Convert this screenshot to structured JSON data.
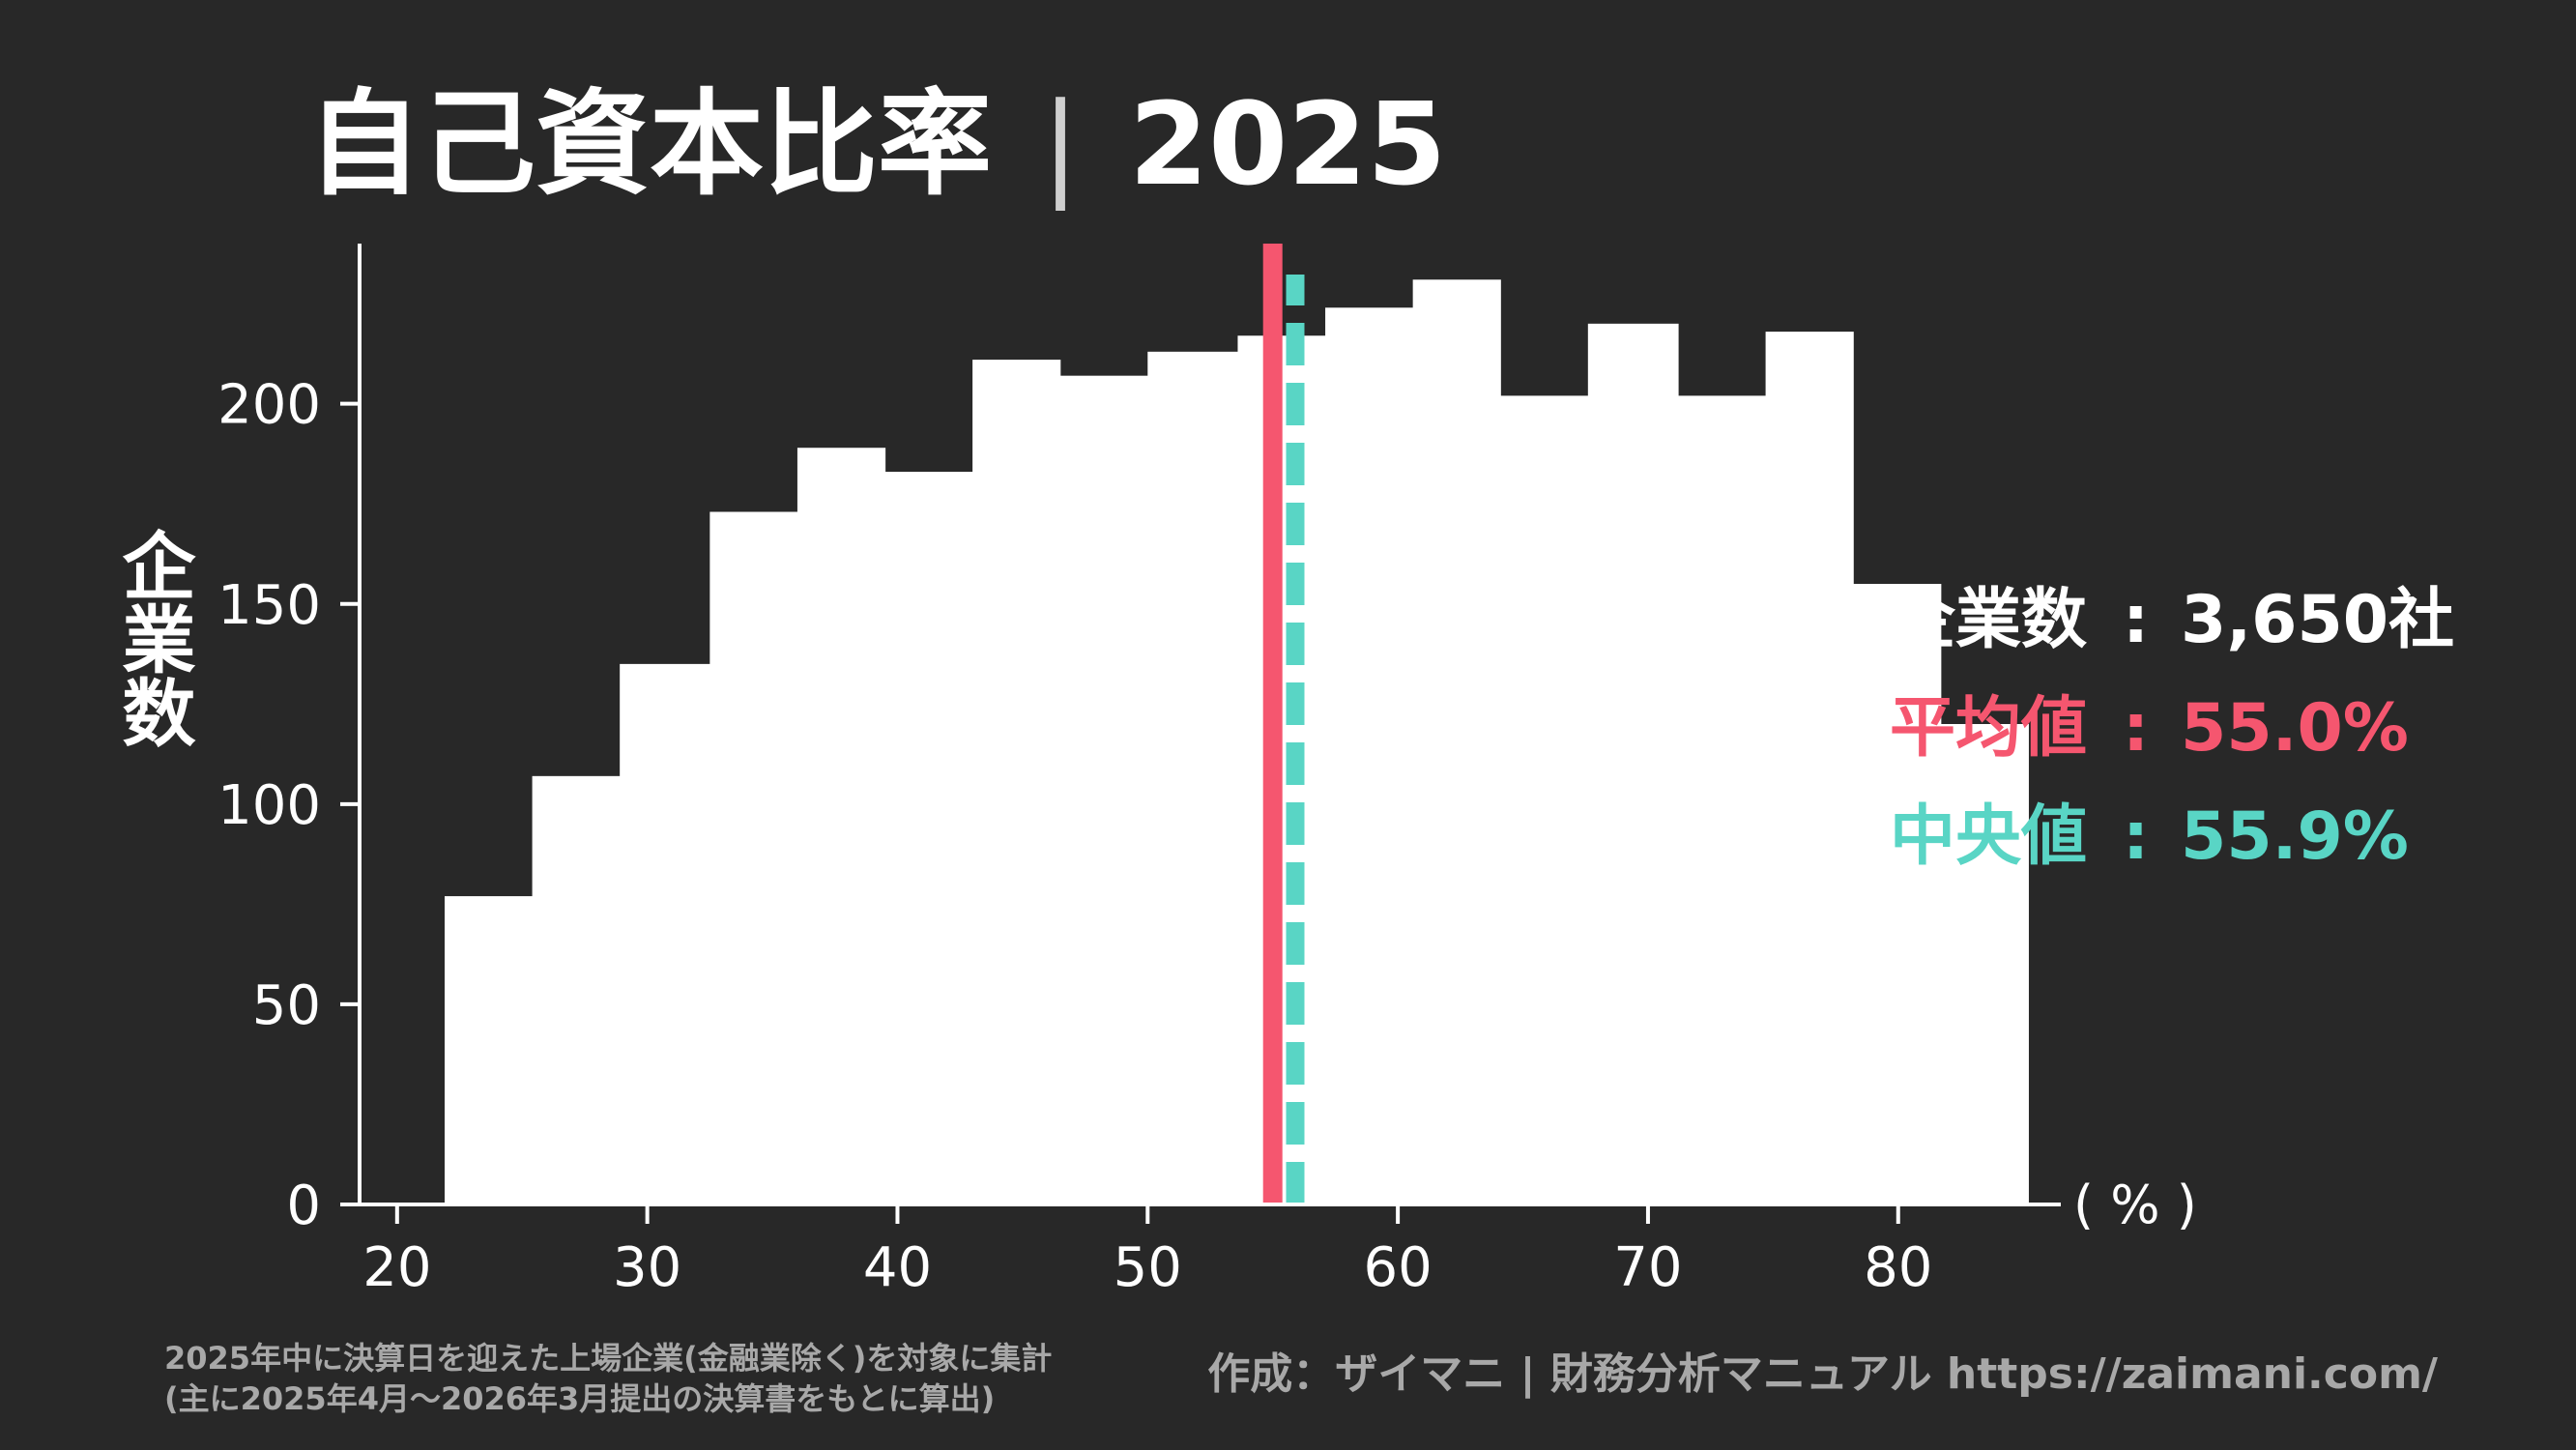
{
  "chart_data": {
    "type": "bar",
    "title_main": "自己資本比率",
    "title_separator": "|",
    "title_year": "2025",
    "ylabel": "企業数",
    "xunit": "( % )",
    "xlim": [
      18.5,
      86.5
    ],
    "ylim": [
      0,
      240
    ],
    "xticks": [
      20,
      30,
      40,
      50,
      60,
      70,
      80
    ],
    "yticks": [
      0,
      50,
      100,
      150,
      200
    ],
    "bins": [
      {
        "start": 18.5,
        "end": 21.9,
        "value": 0
      },
      {
        "start": 21.9,
        "end": 25.4,
        "value": 77
      },
      {
        "start": 25.4,
        "end": 28.9,
        "value": 107
      },
      {
        "start": 28.9,
        "end": 32.5,
        "value": 135
      },
      {
        "start": 32.5,
        "end": 36.0,
        "value": 173
      },
      {
        "start": 36.0,
        "end": 39.5,
        "value": 189
      },
      {
        "start": 39.5,
        "end": 43.0,
        "value": 183
      },
      {
        "start": 43.0,
        "end": 46.5,
        "value": 211
      },
      {
        "start": 46.5,
        "end": 50.0,
        "value": 207
      },
      {
        "start": 50.0,
        "end": 53.6,
        "value": 213
      },
      {
        "start": 53.6,
        "end": 57.1,
        "value": 217
      },
      {
        "start": 57.1,
        "end": 60.6,
        "value": 224
      },
      {
        "start": 60.6,
        "end": 64.1,
        "value": 231
      },
      {
        "start": 64.1,
        "end": 67.6,
        "value": 202
      },
      {
        "start": 67.6,
        "end": 71.2,
        "value": 220
      },
      {
        "start": 71.2,
        "end": 74.7,
        "value": 202
      },
      {
        "start": 74.7,
        "end": 78.2,
        "value": 218
      },
      {
        "start": 78.2,
        "end": 81.7,
        "value": 155
      },
      {
        "start": 81.7,
        "end": 85.2,
        "value": 120
      }
    ],
    "mean": 55.0,
    "median": 55.9,
    "colors": {
      "background": "#282828",
      "bars": "#ffffff",
      "mean": "#f5566f",
      "median": "#59d5c5",
      "note": "#a8a8a8"
    },
    "stats": [
      {
        "label": "企業数",
        "sep": ":",
        "value": "3,650社",
        "color": "#ffffff"
      },
      {
        "label": "平均値",
        "sep": ":",
        "value": "55.0%",
        "color": "#f5566f"
      },
      {
        "label": "中央値",
        "sep": ":",
        "value": "55.9%",
        "color": "#59d5c5"
      }
    ]
  },
  "footnote": {
    "line1": "2025年中に決算日を迎えた上場企業(金融業除く)を対象に集計",
    "line2": "(主に2025年4月〜2026年3月提出の決算書をもとに算出)"
  },
  "credit": "作成：ザイマニ | 財務分析マニュアル https://zaimani.com/"
}
